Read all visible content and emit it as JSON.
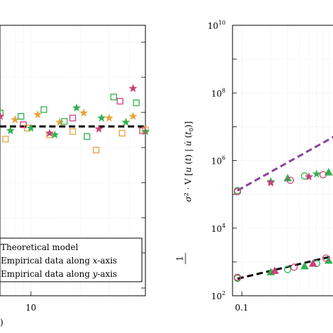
{
  "chart_data": [
    {
      "type": "scatter",
      "panel": "left",
      "x_scale": "log",
      "grid": true,
      "x_tick_labels": [
        "10"
      ],
      "x_partial_label": ")",
      "series": [
        {
          "name": "Theoretical model",
          "style": "dashed-line",
          "color": "#000000",
          "x": [
            1,
            50
          ],
          "y": [
            0,
            0
          ]
        },
        {
          "name": "Empirical data along x-axis",
          "color": "#e8a33d",
          "markers": [
            "square",
            "star"
          ],
          "x": [
            1.0,
            1.2,
            1.5,
            1.8,
            2.2,
            2.6,
            3.0,
            3.5,
            4.0,
            4.6,
            5.2,
            6.0,
            7.0,
            8.0,
            9.5,
            11,
            13,
            15,
            18,
            21,
            25,
            30,
            36,
            42,
            50
          ],
          "y": [
            0.06,
            -0.08,
            0.12,
            -0.05,
            0.15,
            -0.22,
            0.1,
            -0.12,
            0.18,
            -0.06,
            0.04,
            0.2,
            -0.15,
            0.08,
            -0.02,
            0.14,
            -0.1,
            0.05,
            -0.06,
            0.16,
            -0.28,
            0.1,
            -0.08,
            0.12,
            -0.04
          ]
        },
        {
          "name": "Empirical data along y-axis",
          "color": "#2eb24f",
          "markers": [
            "square",
            "star"
          ],
          "x": [
            1.0,
            1.3,
            1.6,
            2.0,
            2.4,
            2.9,
            3.4,
            4.0,
            4.8,
            5.6,
            6.5,
            7.5,
            8.7,
            10,
            12,
            14,
            16,
            19,
            22,
            27,
            32,
            38,
            44,
            50
          ],
          "y": [
            -0.03,
            0.1,
            -0.12,
            0.05,
            0.18,
            -0.08,
            0.03,
            0.14,
            -0.18,
            0.08,
            0.16,
            -0.05,
            0.12,
            -0.02,
            0.2,
            -0.1,
            0.06,
            0.22,
            -0.12,
            0.1,
            0.35,
            0.05,
            0.28,
            -0.06
          ]
        },
        {
          "name": "",
          "color": "#cc3f77",
          "markers": [
            "square",
            "star"
          ],
          "x": [
            2.0,
            3.0,
            4.5,
            6.5,
            9.0,
            13,
            18,
            26,
            35,
            42,
            48
          ],
          "y": [
            -0.04,
            0.08,
            -0.06,
            0.12,
            0.02,
            -0.08,
            0.1,
            -0.03,
            0.3,
            0.45,
            -0.05
          ]
        }
      ],
      "legend": {
        "placement": "bottom-left",
        "entries": [
          "Theoretical model",
          "Empirical data along x-axis",
          "Empirical data along y-axis"
        ]
      }
    },
    {
      "type": "scatter",
      "panel": "right",
      "x_scale": "log",
      "y_scale": "log",
      "grid": true,
      "ylim": [
        100,
        10000000000
      ],
      "x_tick_labels": [
        "0.1"
      ],
      "y_tick_labels": [
        {
          "base": "10",
          "exp": "10",
          "value": 10000000000
        },
        {
          "base": "10",
          "exp": "8",
          "value": 100000000
        },
        {
          "base": "10",
          "exp": "6",
          "value": 1000000
        },
        {
          "base": "10",
          "exp": "4",
          "value": 10000
        },
        {
          "base": "10",
          "exp": "2",
          "value": 100
        }
      ],
      "ylabel": "1/σ² · V[u(t) | u̇(t₀)]",
      "series": [
        {
          "name": "",
          "style": "dashed-line",
          "color": "#8b3fa0",
          "x": [
            0.09,
            0.9
          ],
          "y": [
            130000,
            5000000
          ]
        },
        {
          "name": "",
          "style": "dashed-line",
          "color": "#000000",
          "x": [
            0.09,
            0.9
          ],
          "y": [
            320,
            1500
          ]
        },
        {
          "name": "",
          "color": "#2eb24f",
          "markers": [
            "circle",
            "star",
            "triangle"
          ],
          "x": [
            0.09,
            0.2,
            0.3,
            0.45,
            0.6,
            0.8
          ],
          "y": [
            130000,
            240000,
            300000,
            350000,
            400000,
            450000
          ]
        },
        {
          "name": "",
          "color": "#cc3f77",
          "markers": [
            "circle",
            "star"
          ],
          "x": [
            0.09,
            0.2,
            0.32,
            0.5,
            0.7
          ],
          "y": [
            120000,
            220000,
            260000,
            330000,
            380000
          ]
        },
        {
          "name": "",
          "color": "#2eb24f",
          "markers": [
            "circle",
            "triangle"
          ],
          "x": [
            0.09,
            0.2,
            0.3,
            0.45,
            0.6,
            0.8
          ],
          "y": [
            330,
            500,
            600,
            750,
            900,
            1100
          ]
        },
        {
          "name": "",
          "color": "#cc3f77",
          "markers": [
            "circle",
            "triangle"
          ],
          "x": [
            0.09,
            0.22,
            0.35,
            0.55,
            0.75
          ],
          "y": [
            350,
            550,
            700,
            900,
            1300
          ]
        }
      ]
    }
  ]
}
